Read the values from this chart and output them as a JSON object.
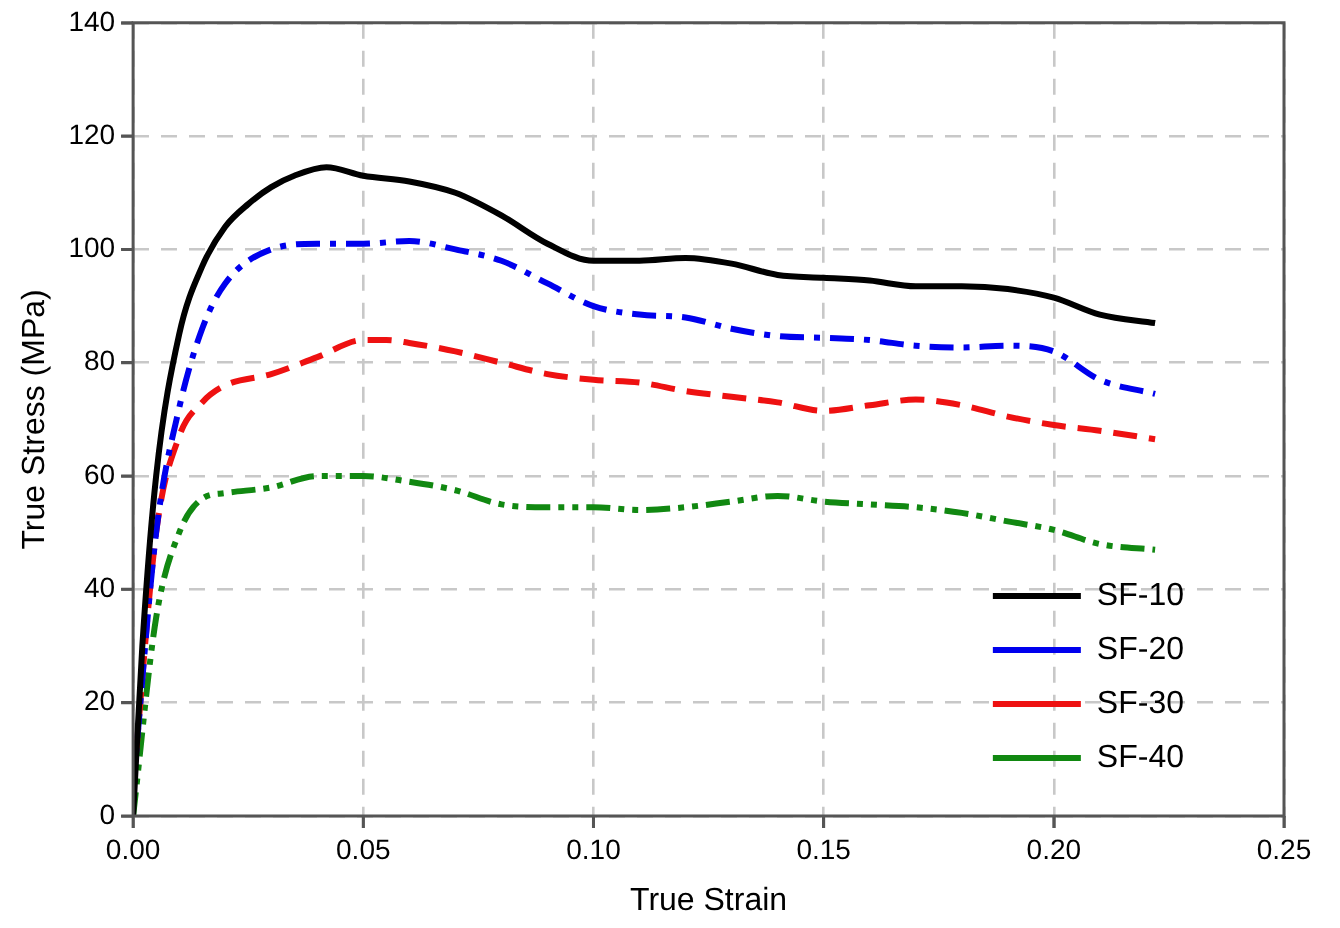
{
  "chart_data": {
    "type": "line",
    "xlabel": "True Strain",
    "ylabel": "True Stress (MPa)",
    "xlim": [
      0,
      0.25
    ],
    "xticks": [
      {
        "value": 0,
        "label": "0.00"
      },
      {
        "value": 0.05,
        "label": "0.05"
      },
      {
        "value": 0.1,
        "label": "0.10"
      },
      {
        "value": 0.15,
        "label": "0.15"
      },
      {
        "value": 0.2,
        "label": "0.20"
      },
      {
        "value": 0.25,
        "label": "0.25"
      }
    ],
    "ylim": [
      0,
      140
    ],
    "yticks": [
      0,
      20,
      40,
      60,
      80,
      100,
      120,
      140
    ],
    "grid": true,
    "legend": "bottom right",
    "marker": "none",
    "series": [
      {
        "name": "SF-10",
        "color": "#000000",
        "line_style": "solid",
        "x": [
          0,
          0.002,
          0.005,
          0.01,
          0.015,
          0.02,
          0.025,
          0.03,
          0.035,
          0.042,
          0.05,
          0.06,
          0.07,
          0.08,
          0.09,
          0.1,
          0.11,
          0.12,
          0.13,
          0.14,
          0.15,
          0.16,
          0.17,
          0.18,
          0.19,
          0.2,
          0.21,
          0.222
        ],
        "values": [
          0,
          30,
          60,
          85,
          97,
          104,
          108,
          111,
          113,
          114.5,
          113,
          112,
          110,
          106,
          101,
          98,
          98,
          98.5,
          97.5,
          95.5,
          95,
          94.5,
          93.5,
          93.5,
          93,
          91.5,
          88.5,
          87
        ]
      },
      {
        "name": "SF-20",
        "color": "#0000ee",
        "line_style": "dashdot",
        "x": [
          0,
          0.005,
          0.01,
          0.015,
          0.02,
          0.03,
          0.04,
          0.05,
          0.06,
          0.07,
          0.08,
          0.09,
          0.1,
          0.11,
          0.12,
          0.13,
          0.14,
          0.15,
          0.16,
          0.17,
          0.18,
          0.19,
          0.2,
          0.21,
          0.222
        ],
        "values": [
          5,
          50,
          72,
          86,
          94,
          100,
          101,
          101,
          101.5,
          100,
          98,
          94,
          90,
          88.5,
          88,
          86,
          84.7,
          84.4,
          84,
          83,
          82.7,
          83,
          82,
          77,
          74.5
        ]
      },
      {
        "name": "SF-30",
        "color": "#ee1111",
        "line_style": "dashed",
        "x": [
          0,
          0.005,
          0.01,
          0.015,
          0.02,
          0.03,
          0.04,
          0.05,
          0.055,
          0.06,
          0.07,
          0.08,
          0.09,
          0.1,
          0.11,
          0.12,
          0.13,
          0.14,
          0.15,
          0.16,
          0.17,
          0.18,
          0.19,
          0.2,
          0.21,
          0.222
        ],
        "values": [
          5,
          50,
          67,
          73,
          76,
          78,
          81,
          84,
          84,
          83.5,
          82,
          80,
          78,
          77,
          76.5,
          75,
          74,
          73,
          71.5,
          72.5,
          73.5,
          72.5,
          70.5,
          69,
          68,
          66.5
        ]
      },
      {
        "name": "SF-40",
        "color": "#118811",
        "line_style": "dashdotdot",
        "x": [
          0,
          0.005,
          0.01,
          0.015,
          0.02,
          0.03,
          0.04,
          0.05,
          0.06,
          0.07,
          0.08,
          0.09,
          0.1,
          0.11,
          0.12,
          0.13,
          0.14,
          0.15,
          0.16,
          0.17,
          0.18,
          0.19,
          0.2,
          0.21,
          0.222
        ],
        "values": [
          0,
          35,
          50,
          56,
          57,
          58,
          60,
          60,
          59,
          57.5,
          55,
          54.5,
          54.5,
          54,
          54.5,
          55.5,
          56.5,
          55.5,
          55,
          54.5,
          53.5,
          52,
          50.5,
          48,
          47
        ]
      }
    ]
  }
}
